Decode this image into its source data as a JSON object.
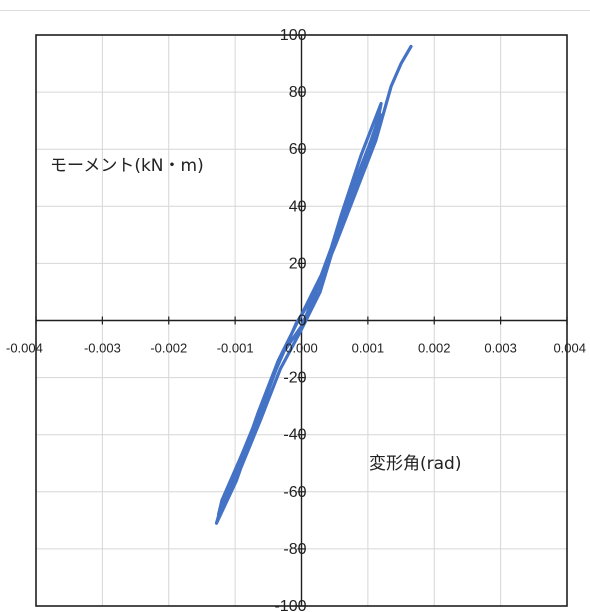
{
  "chart_data": {
    "type": "line",
    "title": "",
    "xlabel": "変形角(rad)",
    "ylabel": "モーメント(kN・m)",
    "xlim": [
      -0.004,
      0.004
    ],
    "ylim": [
      -100,
      100
    ],
    "x_ticks": [
      -0.004,
      -0.003,
      -0.002,
      -0.001,
      0.0,
      0.001,
      0.002,
      0.003,
      0.004
    ],
    "x_tick_labels": [
      "-0.004",
      "-0.003",
      "-0.002",
      "-0.001",
      "0.000",
      "0.001",
      "0.002",
      "0.003",
      "0.004"
    ],
    "y_ticks": [
      100,
      80,
      60,
      40,
      20,
      0,
      -20,
      -40,
      -60,
      -80,
      -100
    ],
    "y_tick_labels": [
      "100",
      "80",
      "60",
      "40",
      "20",
      "0",
      "-20",
      "-40",
      "-60",
      "-80",
      "-100"
    ],
    "grid": true,
    "line_color": "#4472c4",
    "series": [
      {
        "x": [
          0.0,
          0.0003,
          0.0006,
          0.0009,
          0.00115,
          0.0012,
          0.0009,
          0.0006,
          0.0003,
          0.0,
          -0.0003,
          -0.0006,
          -0.0009,
          -0.0012,
          -0.00125,
          -0.00095,
          -0.00065,
          -0.00035,
          -5e-05,
          0.00025,
          0.00055,
          0.00085,
          0.00115,
          0.0012,
          0.00088,
          0.00058,
          0.00028,
          -2e-05,
          -0.00032,
          -0.00062,
          -0.00092,
          -0.00122,
          -0.00128,
          -0.00098,
          -0.00068,
          -0.00038,
          -8e-05,
          0.00022,
          0.00052,
          0.00082,
          0.00112,
          0.00135,
          0.0015,
          0.00165
        ],
        "y": [
          2,
          16,
          35,
          53,
          70,
          76,
          58,
          37,
          14,
          -2,
          -12,
          -30,
          -47,
          -63,
          -68,
          -52,
          -32,
          -14,
          0,
          12,
          30,
          49,
          66,
          72,
          53,
          33,
          10,
          -4,
          -17,
          -35,
          -52,
          -66,
          -71,
          -56,
          -36,
          -17,
          -1,
          10,
          27,
          45,
          63,
          82,
          90,
          96
        ]
      }
    ]
  }
}
